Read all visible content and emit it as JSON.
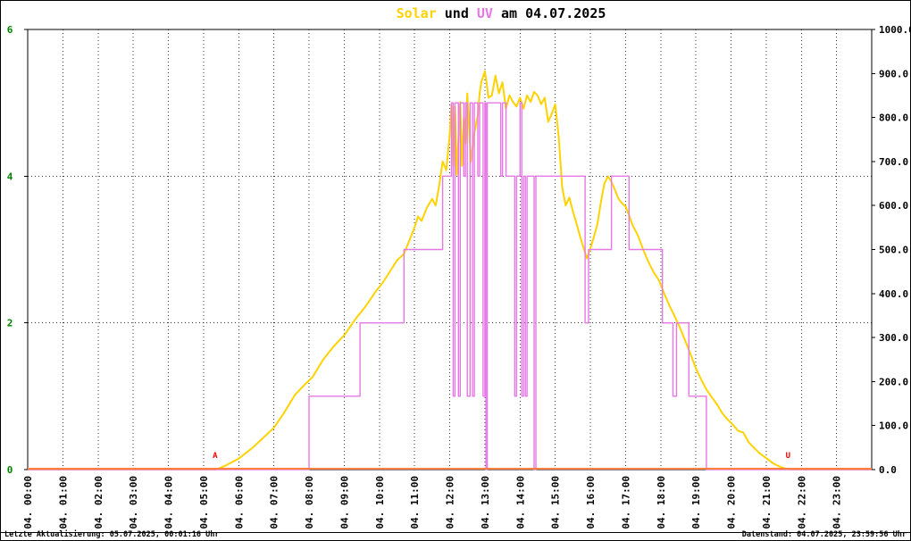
{
  "title": {
    "solar": "Solar",
    "und": " und ",
    "uv": "UV",
    "date": " am 04.07.2025"
  },
  "footer": {
    "last_update": "Letzte Aktualisierung: 05.07.2025, 00:01:16 Uhr",
    "data_state": "Datenstand: 04.07.2025, 23:59:56 Uhr"
  },
  "colors": {
    "solar": "#ffd200",
    "uv": "#e678e6",
    "baseline": "#ff8040",
    "left_axis": "#008000",
    "marker": "#ff0000",
    "grid": "#333333",
    "axis_text": "#000000"
  },
  "chart_data": {
    "type": "line",
    "title": "Solar und UV am 04.07.2025",
    "x_axis": {
      "min": 0,
      "max": 24,
      "labels": [
        "04. 00:00",
        "04. 01:00",
        "04. 02:00",
        "04. 03:00",
        "04. 04:00",
        "04. 05:00",
        "04. 06:00",
        "04. 07:00",
        "04. 08:00",
        "04. 09:00",
        "04. 10:00",
        "04. 11:00",
        "04. 12:00",
        "04. 13:00",
        "04. 14:00",
        "04. 15:00",
        "04. 16:00",
        "04. 17:00",
        "04. 18:00",
        "04. 19:00",
        "04. 20:00",
        "04. 21:00",
        "04. 22:00",
        "04. 23:00"
      ]
    },
    "left_axis": {
      "min": 0,
      "max": 6,
      "ticks": [
        0,
        2,
        4,
        6
      ],
      "labels": [
        "0",
        "2",
        "4",
        "6"
      ]
    },
    "right_axis": {
      "min": 0,
      "max": 1000,
      "ticks": [
        0,
        100,
        200,
        300,
        400,
        500,
        600,
        700,
        800,
        900,
        1000
      ],
      "labels": [
        "0.0",
        "100.0",
        "200.0",
        "300.0",
        "400.0",
        "500.0",
        "600.0",
        "700.0",
        "800.0",
        "900.0",
        "1000.0"
      ]
    },
    "grid": {
      "vertical_every_hour": true,
      "horizontal_at_left_ticks": [
        2,
        4
      ]
    },
    "markers": [
      {
        "label": "A",
        "hour": 5.33
      },
      {
        "label": "U",
        "hour": 21.62
      }
    ],
    "baseline_value": 0,
    "series": [
      {
        "name": "Solar",
        "color_key": "solar",
        "axis": "right",
        "style": "line",
        "points": [
          [
            0,
            0
          ],
          [
            5.35,
            0
          ],
          [
            5.6,
            8
          ],
          [
            6,
            25
          ],
          [
            6.4,
            50
          ],
          [
            6.8,
            80
          ],
          [
            7,
            95
          ],
          [
            7.3,
            130
          ],
          [
            7.6,
            170
          ],
          [
            7.9,
            195
          ],
          [
            8.1,
            210
          ],
          [
            8.4,
            250
          ],
          [
            8.7,
            280
          ],
          [
            9,
            305
          ],
          [
            9.3,
            340
          ],
          [
            9.6,
            370
          ],
          [
            9.9,
            405
          ],
          [
            10.1,
            425
          ],
          [
            10.3,
            450
          ],
          [
            10.5,
            475
          ],
          [
            10.7,
            490
          ],
          [
            10.9,
            530
          ],
          [
            11,
            550
          ],
          [
            11.1,
            575
          ],
          [
            11.2,
            565
          ],
          [
            11.35,
            595
          ],
          [
            11.5,
            615
          ],
          [
            11.6,
            600
          ],
          [
            11.7,
            645
          ],
          [
            11.8,
            700
          ],
          [
            11.9,
            680
          ],
          [
            12,
            760
          ],
          [
            12.05,
            830
          ],
          [
            12.1,
            690
          ],
          [
            12.15,
            825
          ],
          [
            12.2,
            670
          ],
          [
            12.3,
            835
          ],
          [
            12.35,
            690
          ],
          [
            12.4,
            800
          ],
          [
            12.45,
            740
          ],
          [
            12.5,
            855
          ],
          [
            12.55,
            780
          ],
          [
            12.6,
            700
          ],
          [
            12.7,
            765
          ],
          [
            12.8,
            805
          ],
          [
            12.85,
            855
          ],
          [
            12.9,
            880
          ],
          [
            13,
            905
          ],
          [
            13.05,
            880
          ],
          [
            13.1,
            845
          ],
          [
            13.2,
            850
          ],
          [
            13.3,
            895
          ],
          [
            13.4,
            855
          ],
          [
            13.5,
            880
          ],
          [
            13.6,
            820
          ],
          [
            13.7,
            850
          ],
          [
            13.8,
            835
          ],
          [
            13.9,
            825
          ],
          [
            14,
            845
          ],
          [
            14.1,
            820
          ],
          [
            14.2,
            850
          ],
          [
            14.3,
            835
          ],
          [
            14.4,
            858
          ],
          [
            14.5,
            850
          ],
          [
            14.6,
            830
          ],
          [
            14.7,
            845
          ],
          [
            14.8,
            790
          ],
          [
            14.9,
            808
          ],
          [
            15,
            830
          ],
          [
            15.1,
            755
          ],
          [
            15.2,
            640
          ],
          [
            15.3,
            600
          ],
          [
            15.4,
            618
          ],
          [
            15.5,
            588
          ],
          [
            15.6,
            560
          ],
          [
            15.7,
            532
          ],
          [
            15.8,
            505
          ],
          [
            15.9,
            480
          ],
          [
            16,
            502
          ],
          [
            16.1,
            528
          ],
          [
            16.2,
            558
          ],
          [
            16.3,
            608
          ],
          [
            16.4,
            650
          ],
          [
            16.5,
            666
          ],
          [
            16.6,
            654
          ],
          [
            16.7,
            635
          ],
          [
            16.8,
            615
          ],
          [
            16.9,
            605
          ],
          [
            17,
            598
          ],
          [
            17.1,
            578
          ],
          [
            17.2,
            555
          ],
          [
            17.35,
            532
          ],
          [
            17.5,
            500
          ],
          [
            17.65,
            472
          ],
          [
            17.8,
            448
          ],
          [
            17.95,
            430
          ],
          [
            18.1,
            400
          ],
          [
            18.25,
            372
          ],
          [
            18.4,
            348
          ],
          [
            18.55,
            322
          ],
          [
            18.7,
            292
          ],
          [
            18.85,
            262
          ],
          [
            19,
            230
          ],
          [
            19.15,
            205
          ],
          [
            19.3,
            182
          ],
          [
            19.45,
            165
          ],
          [
            19.6,
            148
          ],
          [
            19.75,
            128
          ],
          [
            19.9,
            114
          ],
          [
            20.05,
            102
          ],
          [
            20.2,
            88
          ],
          [
            20.35,
            84
          ],
          [
            20.5,
            62
          ],
          [
            20.65,
            50
          ],
          [
            20.8,
            38
          ],
          [
            21,
            26
          ],
          [
            21.2,
            14
          ],
          [
            21.4,
            6
          ],
          [
            21.6,
            1
          ],
          [
            21.75,
            0
          ],
          [
            24,
            0
          ]
        ]
      },
      {
        "name": "UV",
        "color_key": "uv",
        "axis": "left",
        "style": "step",
        "points": [
          [
            0,
            0
          ],
          [
            8,
            1
          ],
          [
            9.45,
            2
          ],
          [
            10.7,
            3
          ],
          [
            11.8,
            4
          ],
          [
            12.05,
            5
          ],
          [
            12.1,
            1
          ],
          [
            12.15,
            5
          ],
          [
            12.25,
            1
          ],
          [
            12.3,
            5
          ],
          [
            12.4,
            4
          ],
          [
            12.45,
            5
          ],
          [
            12.5,
            1
          ],
          [
            12.58,
            5
          ],
          [
            12.65,
            1
          ],
          [
            12.7,
            5
          ],
          [
            12.8,
            4
          ],
          [
            12.85,
            5
          ],
          [
            12.95,
            1
          ],
          [
            13,
            5
          ],
          [
            13.03,
            0
          ],
          [
            13.07,
            5
          ],
          [
            13.45,
            4
          ],
          [
            13.5,
            5
          ],
          [
            13.6,
            4
          ],
          [
            13.85,
            1
          ],
          [
            13.9,
            4
          ],
          [
            14,
            5
          ],
          [
            14.05,
            1
          ],
          [
            14.1,
            4
          ],
          [
            14.15,
            1
          ],
          [
            14.2,
            4
          ],
          [
            14.4,
            0
          ],
          [
            14.45,
            4
          ],
          [
            15.85,
            2
          ],
          [
            15.95,
            3
          ],
          [
            16.6,
            4
          ],
          [
            17.1,
            3
          ],
          [
            18.05,
            2
          ],
          [
            18.35,
            1
          ],
          [
            18.45,
            2
          ],
          [
            18.8,
            1
          ],
          [
            19.3,
            0
          ]
        ]
      }
    ]
  }
}
